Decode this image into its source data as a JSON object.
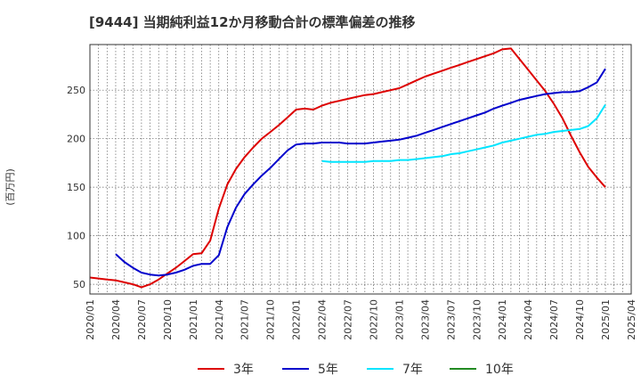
{
  "chart_data": {
    "type": "line",
    "title": "[9444]  当期純利益12か月移動合計の標準偏差の推移",
    "ylabel": "(百万円)",
    "xlabel": "",
    "x_ticks": [
      "2020/01",
      "2020/04",
      "2020/07",
      "2020/10",
      "2021/01",
      "2021/04",
      "2021/07",
      "2021/10",
      "2022/01",
      "2022/04",
      "2022/07",
      "2022/10",
      "2023/01",
      "2023/04",
      "2023/07",
      "2023/10",
      "2024/01",
      "2024/04",
      "2024/07",
      "2024/10",
      "2025/01",
      "2025/04"
    ],
    "y_ticks": [
      50,
      100,
      150,
      200,
      250
    ],
    "ylim": [
      40,
      297
    ],
    "grid": true,
    "legend_position": "bottom",
    "series": [
      {
        "name": "3年",
        "color": "#dd0000",
        "x": [
          "2020/01",
          "2020/02",
          "2020/03",
          "2020/04",
          "2020/05",
          "2020/06",
          "2020/07",
          "2020/08",
          "2020/09",
          "2020/10",
          "2020/11",
          "2020/12",
          "2021/01",
          "2021/02",
          "2021/03",
          "2021/04",
          "2021/05",
          "2021/06",
          "2021/07",
          "2021/08",
          "2021/09",
          "2021/10",
          "2021/11",
          "2021/12",
          "2022/01",
          "2022/02",
          "2022/03",
          "2022/04",
          "2022/05",
          "2022/06",
          "2022/07",
          "2022/08",
          "2022/09",
          "2022/10",
          "2022/11",
          "2022/12",
          "2023/01",
          "2023/02",
          "2023/03",
          "2023/04",
          "2023/05",
          "2023/06",
          "2023/07",
          "2023/08",
          "2023/09",
          "2023/10",
          "2023/11",
          "2023/12",
          "2024/01",
          "2024/02",
          "2024/03",
          "2024/04",
          "2024/05",
          "2024/06",
          "2024/07",
          "2024/08",
          "2024/09",
          "2024/10",
          "2024/11",
          "2024/12",
          "2025/01"
        ],
        "values": [
          57,
          56,
          55,
          54,
          52,
          50,
          47,
          50,
          55,
          61,
          67,
          74,
          81,
          82,
          95,
          128,
          153,
          169,
          181,
          191,
          200,
          207,
          214,
          222,
          230,
          231,
          230,
          234,
          237,
          239,
          241,
          243,
          245,
          246,
          248,
          250,
          252,
          256,
          260,
          264,
          267,
          270,
          273,
          276,
          279,
          282,
          285,
          288,
          292,
          293,
          282,
          271,
          260,
          249,
          236,
          221,
          203,
          186,
          171,
          160,
          150
        ],
        "visible_until": "2025/01"
      },
      {
        "name": "5年",
        "color": "#0000cc",
        "x": [
          "2020/04",
          "2020/05",
          "2020/06",
          "2020/07",
          "2020/08",
          "2020/09",
          "2020/10",
          "2020/11",
          "2020/12",
          "2021/01",
          "2021/02",
          "2021/03",
          "2021/04",
          "2021/05",
          "2021/06",
          "2021/07",
          "2021/08",
          "2021/09",
          "2021/10",
          "2021/11",
          "2021/12",
          "2022/01",
          "2022/02",
          "2022/03",
          "2022/04",
          "2022/05",
          "2022/06",
          "2022/07",
          "2022/08",
          "2022/09",
          "2022/10",
          "2022/11",
          "2022/12",
          "2023/01",
          "2023/02",
          "2023/03",
          "2023/04",
          "2023/05",
          "2023/06",
          "2023/07",
          "2023/08",
          "2023/09",
          "2023/10",
          "2023/11",
          "2023/12",
          "2024/01",
          "2024/02",
          "2024/03",
          "2024/04",
          "2024/05",
          "2024/06",
          "2024/07",
          "2024/08",
          "2024/09",
          "2024/10",
          "2024/11",
          "2024/12",
          "2025/01"
        ],
        "values": [
          81,
          73,
          67,
          62,
          60,
          59,
          60,
          62,
          65,
          69,
          71,
          71,
          80,
          109,
          129,
          143,
          153,
          162,
          170,
          179,
          188,
          194,
          195,
          195,
          196,
          196,
          196,
          195,
          195,
          195,
          196,
          197,
          198,
          199,
          201,
          203,
          206,
          209,
          212,
          215,
          218,
          221,
          224,
          227,
          231,
          234,
          237,
          240,
          242,
          244,
          246,
          247,
          248,
          248,
          249,
          253,
          258,
          272
        ]
      },
      {
        "name": "7年",
        "color": "#00e5ff",
        "x": [
          "2022/04",
          "2022/05",
          "2022/06",
          "2022/07",
          "2022/08",
          "2022/09",
          "2022/10",
          "2022/11",
          "2022/12",
          "2023/01",
          "2023/02",
          "2023/03",
          "2023/04",
          "2023/05",
          "2023/06",
          "2023/07",
          "2023/08",
          "2023/09",
          "2023/10",
          "2023/11",
          "2023/12",
          "2024/01",
          "2024/02",
          "2024/03",
          "2024/04",
          "2024/05",
          "2024/06",
          "2024/07",
          "2024/08",
          "2024/09",
          "2024/10",
          "2024/11",
          "2024/12",
          "2025/01"
        ],
        "values": [
          177,
          176,
          176,
          176,
          176,
          176,
          177,
          177,
          177,
          178,
          178,
          179,
          180,
          181,
          182,
          184,
          185,
          187,
          189,
          191,
          193,
          196,
          198,
          200,
          202,
          204,
          205,
          207,
          208,
          209,
          210,
          213,
          221,
          235
        ]
      },
      {
        "name": "10年",
        "color": "#228b22",
        "x": [],
        "values": []
      }
    ]
  }
}
